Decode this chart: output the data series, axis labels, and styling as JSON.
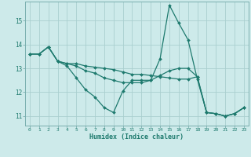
{
  "xlabel": "Humidex (Indice chaleur)",
  "bg_color": "#cdeaea",
  "grid_color": "#aacfcf",
  "line_color": "#1e7a6e",
  "xlim": [
    -0.5,
    23.5
  ],
  "ylim": [
    10.6,
    15.8
  ],
  "yticks": [
    11,
    12,
    13,
    14,
    15
  ],
  "xticks": [
    0,
    1,
    2,
    3,
    4,
    5,
    6,
    7,
    8,
    9,
    10,
    11,
    12,
    13,
    14,
    15,
    16,
    17,
    18,
    19,
    20,
    21,
    22,
    23
  ],
  "line1_x": [
    0,
    1,
    2,
    3,
    4,
    5,
    6,
    7,
    8,
    9,
    10,
    11,
    12,
    13,
    14,
    15,
    16,
    17,
    18,
    19,
    20,
    21,
    22,
    23
  ],
  "line1_y": [
    13.6,
    13.6,
    13.9,
    13.3,
    13.1,
    12.6,
    12.1,
    11.8,
    11.35,
    11.15,
    12.05,
    12.5,
    12.5,
    12.5,
    13.4,
    15.65,
    14.9,
    14.2,
    12.55,
    11.15,
    11.1,
    11.0,
    11.1,
    11.35
  ],
  "line2_x": [
    0,
    1,
    2,
    3,
    4,
    5,
    6,
    7,
    8,
    9,
    10,
    11,
    12,
    13,
    14,
    15,
    16,
    17,
    18,
    19,
    20,
    21,
    22,
    23
  ],
  "line2_y": [
    13.6,
    13.6,
    13.9,
    13.3,
    13.2,
    13.1,
    12.9,
    12.8,
    12.6,
    12.5,
    12.4,
    12.4,
    12.4,
    12.5,
    12.7,
    12.9,
    13.0,
    13.0,
    12.65,
    11.15,
    11.1,
    11.0,
    11.1,
    11.35
  ],
  "line3_x": [
    0,
    1,
    2,
    3,
    4,
    5,
    6,
    7,
    8,
    9,
    10,
    11,
    12,
    13,
    14,
    15,
    16,
    17,
    18,
    19,
    20,
    21,
    22,
    23
  ],
  "line3_y": [
    13.6,
    13.6,
    13.9,
    13.3,
    13.2,
    13.2,
    13.1,
    13.05,
    13.0,
    12.95,
    12.85,
    12.75,
    12.75,
    12.7,
    12.65,
    12.6,
    12.55,
    12.55,
    12.65,
    11.15,
    11.1,
    11.0,
    11.1,
    11.35
  ]
}
